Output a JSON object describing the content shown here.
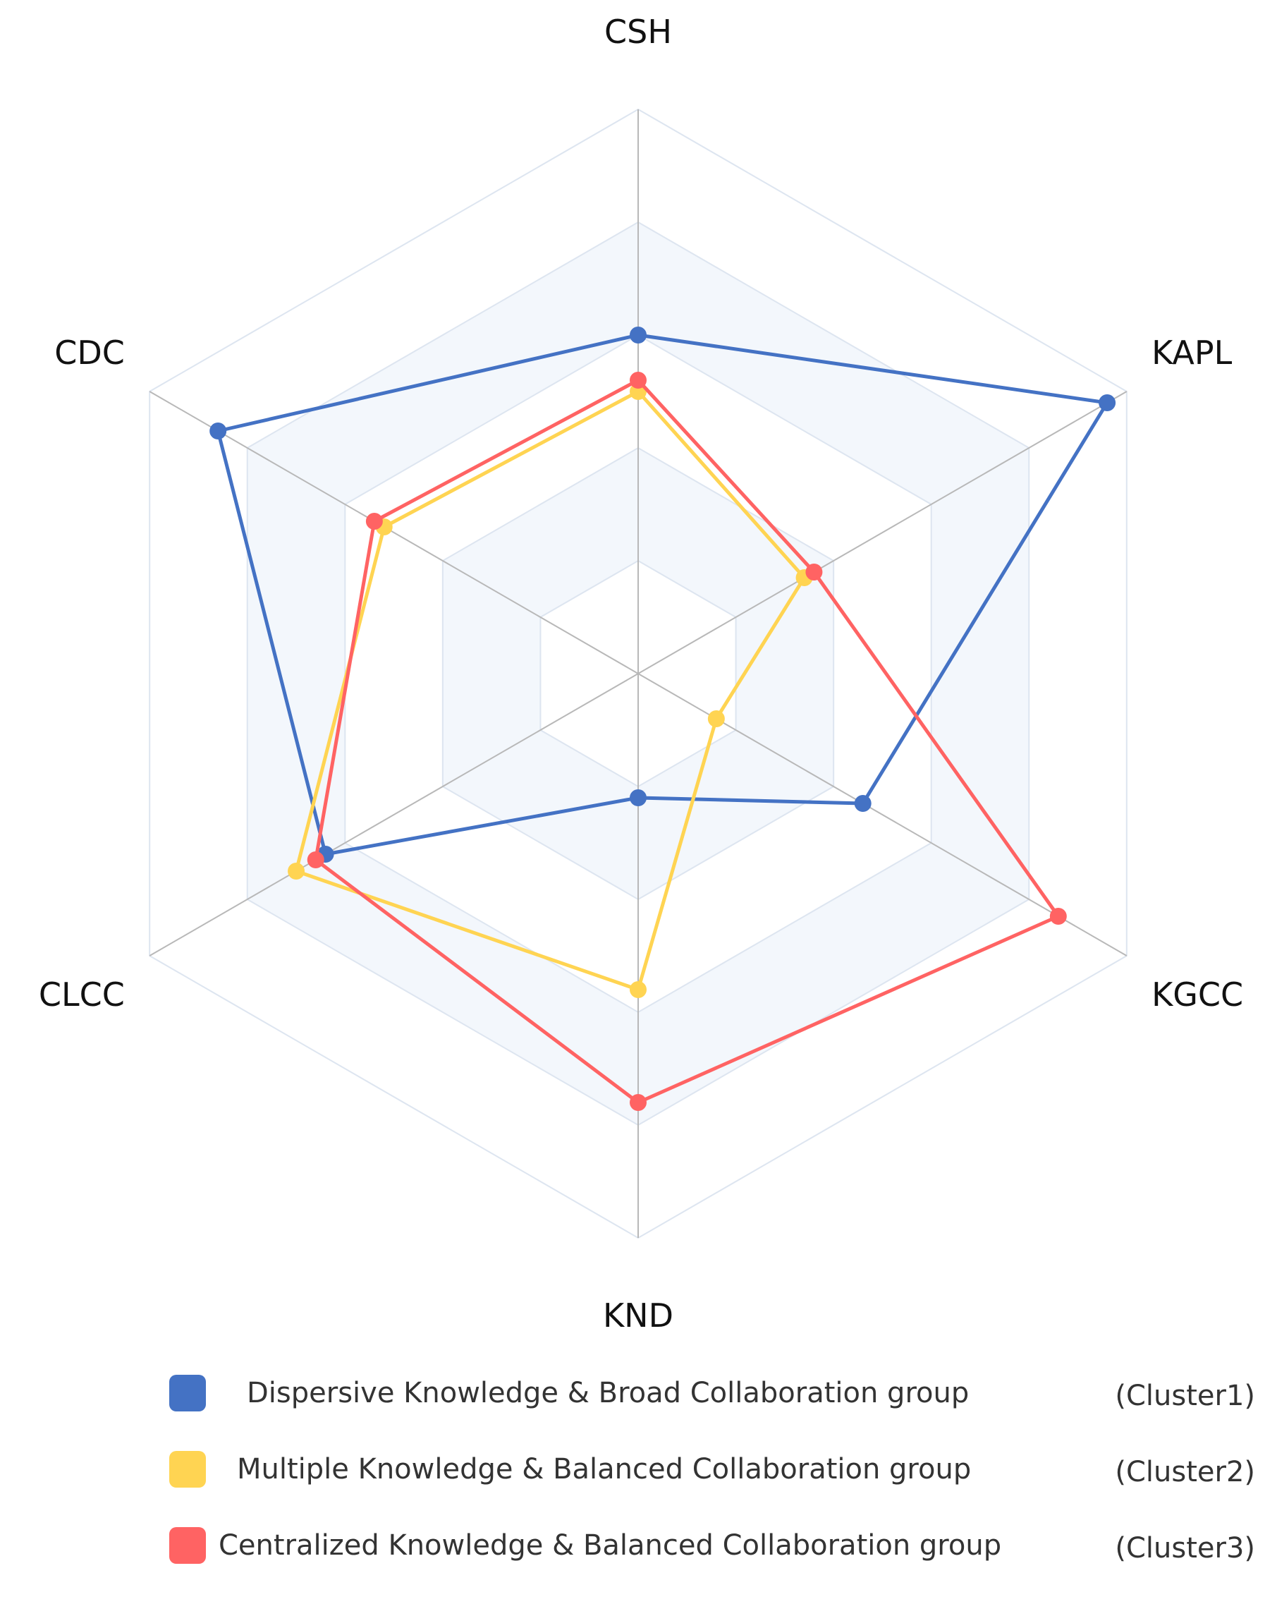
{
  "chart_data": {
    "type": "radar",
    "axes": [
      "CSH",
      "KAPL",
      "KGCC",
      "KND",
      "CLCC",
      "CDC"
    ],
    "max": 5,
    "series": [
      {
        "name": "Dispersive Knowledge & Broad Collaboration group",
        "cluster": "(Cluster1)",
        "color": "#4472c4",
        "values": [
          3.0,
          4.8,
          2.3,
          1.1,
          3.2,
          4.3
        ]
      },
      {
        "name": "Multiple Knowledge & Balanced Collaboration group",
        "cluster": "(Cluster2)",
        "color": "#ffd452",
        "values": [
          2.5,
          1.7,
          0.8,
          2.8,
          3.5,
          2.6
        ]
      },
      {
        "name": "Centralized Knowledge & Balanced Collaboration group",
        "cluster": "(Cluster3)",
        "color": "#ff6363",
        "values": [
          2.6,
          1.8,
          4.3,
          3.8,
          3.3,
          2.7
        ]
      }
    ]
  }
}
